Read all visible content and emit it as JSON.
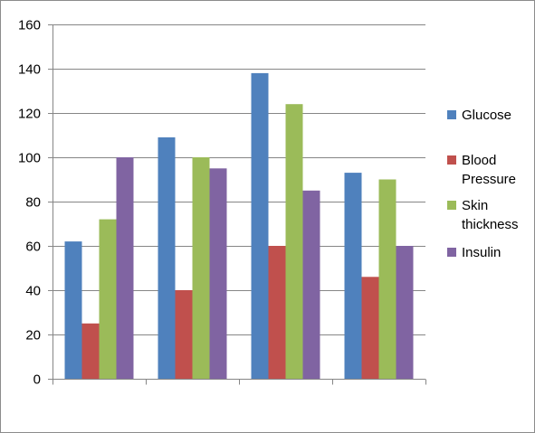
{
  "chart_data": {
    "type": "bar",
    "title": "",
    "xlabel": "",
    "ylabel": "",
    "ylim": [
      0,
      160
    ],
    "yticks": [
      0,
      20,
      40,
      60,
      80,
      100,
      120,
      140,
      160
    ],
    "grid": "horizontal",
    "legend_position": "right",
    "categories": [
      "",
      "",
      "",
      ""
    ],
    "series": [
      {
        "name": "Glucose",
        "color": "#4f81bd",
        "values": [
          62,
          109,
          138,
          93
        ]
      },
      {
        "name": "Blood Pressure",
        "color": "#c0504d",
        "values": [
          25,
          40,
          60,
          46
        ]
      },
      {
        "name": "Skin thickness",
        "color": "#9bbb59",
        "values": [
          72,
          100,
          124,
          90
        ]
      },
      {
        "name": "Insulin",
        "color": "#8064a2",
        "values": [
          100,
          95,
          85,
          60
        ]
      }
    ]
  }
}
